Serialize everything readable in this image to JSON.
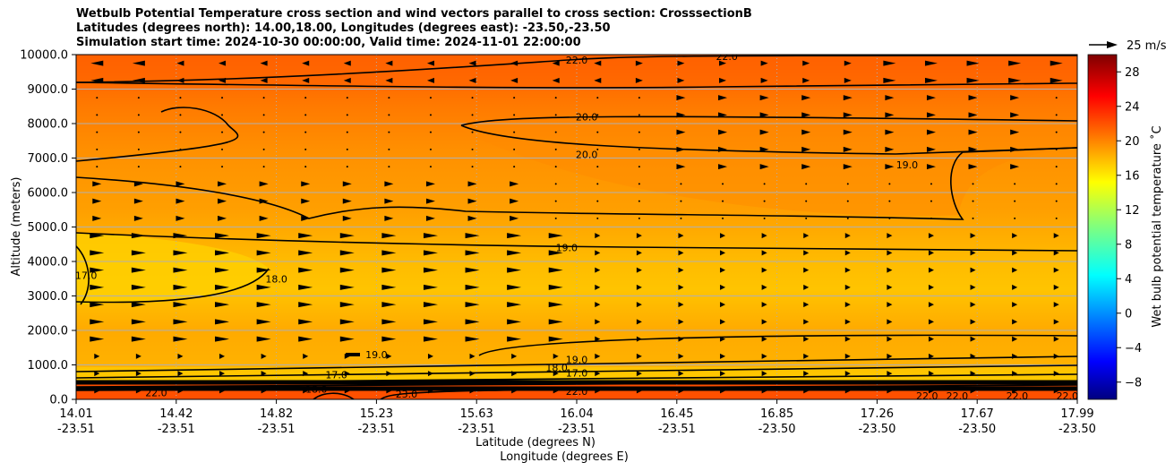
{
  "title": {
    "line1": "Wetbulb Potential Temperature cross section and wind vectors parallel to cross section: CrosssectionB",
    "line2": "Latitudes (degrees north): 14.00,18.00, Longitudes (degrees east): -23.50,-23.50",
    "line3": "Simulation start time: 2024-10-30 00:00:00, Valid time: 2024-11-01 22:00:00"
  },
  "chart_data": {
    "type": "heatmap",
    "ylabel": "Altitude (meters)",
    "xlabel_lat": "Latitude (degrees N)",
    "xlabel_lon": "Longitude (degrees E)",
    "ylim": [
      0,
      10000
    ],
    "yticks": [
      "0.0",
      "1000.0",
      "2000.0",
      "3000.0",
      "4000.0",
      "5000.0",
      "6000.0",
      "7000.0",
      "8000.0",
      "9000.0",
      "10000.0"
    ],
    "xticks": [
      {
        "lat": "14.01",
        "lon": "-23.51"
      },
      {
        "lat": "14.42",
        "lon": "-23.51"
      },
      {
        "lat": "14.82",
        "lon": "-23.51"
      },
      {
        "lat": "15.23",
        "lon": "-23.51"
      },
      {
        "lat": "15.63",
        "lon": "-23.51"
      },
      {
        "lat": "16.04",
        "lon": "-23.51"
      },
      {
        "lat": "16.45",
        "lon": "-23.51"
      },
      {
        "lat": "16.85",
        "lon": "-23.50"
      },
      {
        "lat": "17.26",
        "lon": "-23.50"
      },
      {
        "lat": "17.67",
        "lon": "-23.50"
      },
      {
        "lat": "17.99",
        "lon": "-23.50"
      }
    ],
    "grid": true,
    "colorbar": {
      "label": "Wet bulb potential temperature ˚C",
      "range": [
        -10,
        30
      ],
      "ticks": [
        "−8",
        "−4",
        "0",
        "4",
        "8",
        "12",
        "16",
        "20",
        "24",
        "28"
      ],
      "colormap": "jet"
    },
    "quiver_key": "25 m/s",
    "contour_labels": [
      {
        "text": "22.0",
        "x": 0.5,
        "y": 9850
      },
      {
        "text": "22.0",
        "x": 0.65,
        "y": 9950
      },
      {
        "text": "20.0",
        "x": 0.51,
        "y": 8200
      },
      {
        "text": "20.0",
        "x": 0.51,
        "y": 7100
      },
      {
        "text": "19.0",
        "x": 0.83,
        "y": 6800
      },
      {
        "text": "19.0",
        "x": 0.49,
        "y": 4400
      },
      {
        "text": "17.0",
        "x": 0.01,
        "y": 3600
      },
      {
        "text": "18.0",
        "x": 0.2,
        "y": 3500
      },
      {
        "text": "19.0",
        "x": 0.3,
        "y": 1300
      },
      {
        "text": "19.0",
        "x": 0.5,
        "y": 1150
      },
      {
        "text": "18.0",
        "x": 0.48,
        "y": 920
      },
      {
        "text": "17.0",
        "x": 0.26,
        "y": 720
      },
      {
        "text": "17.0",
        "x": 0.5,
        "y": 760
      },
      {
        "text": "18.0",
        "x": 0.24,
        "y": 300
      },
      {
        "text": "22.0",
        "x": 0.08,
        "y": 200
      },
      {
        "text": "22.0",
        "x": 0.5,
        "y": 230
      },
      {
        "text": "22.0",
        "x": 0.85,
        "y": 100
      },
      {
        "text": "22.0",
        "x": 0.88,
        "y": 100
      },
      {
        "text": "22.0",
        "x": 0.94,
        "y": 100
      },
      {
        "text": "22.0",
        "x": 0.99,
        "y": 100
      },
      {
        "text": "23.0",
        "x": 0.33,
        "y": 150
      }
    ]
  }
}
